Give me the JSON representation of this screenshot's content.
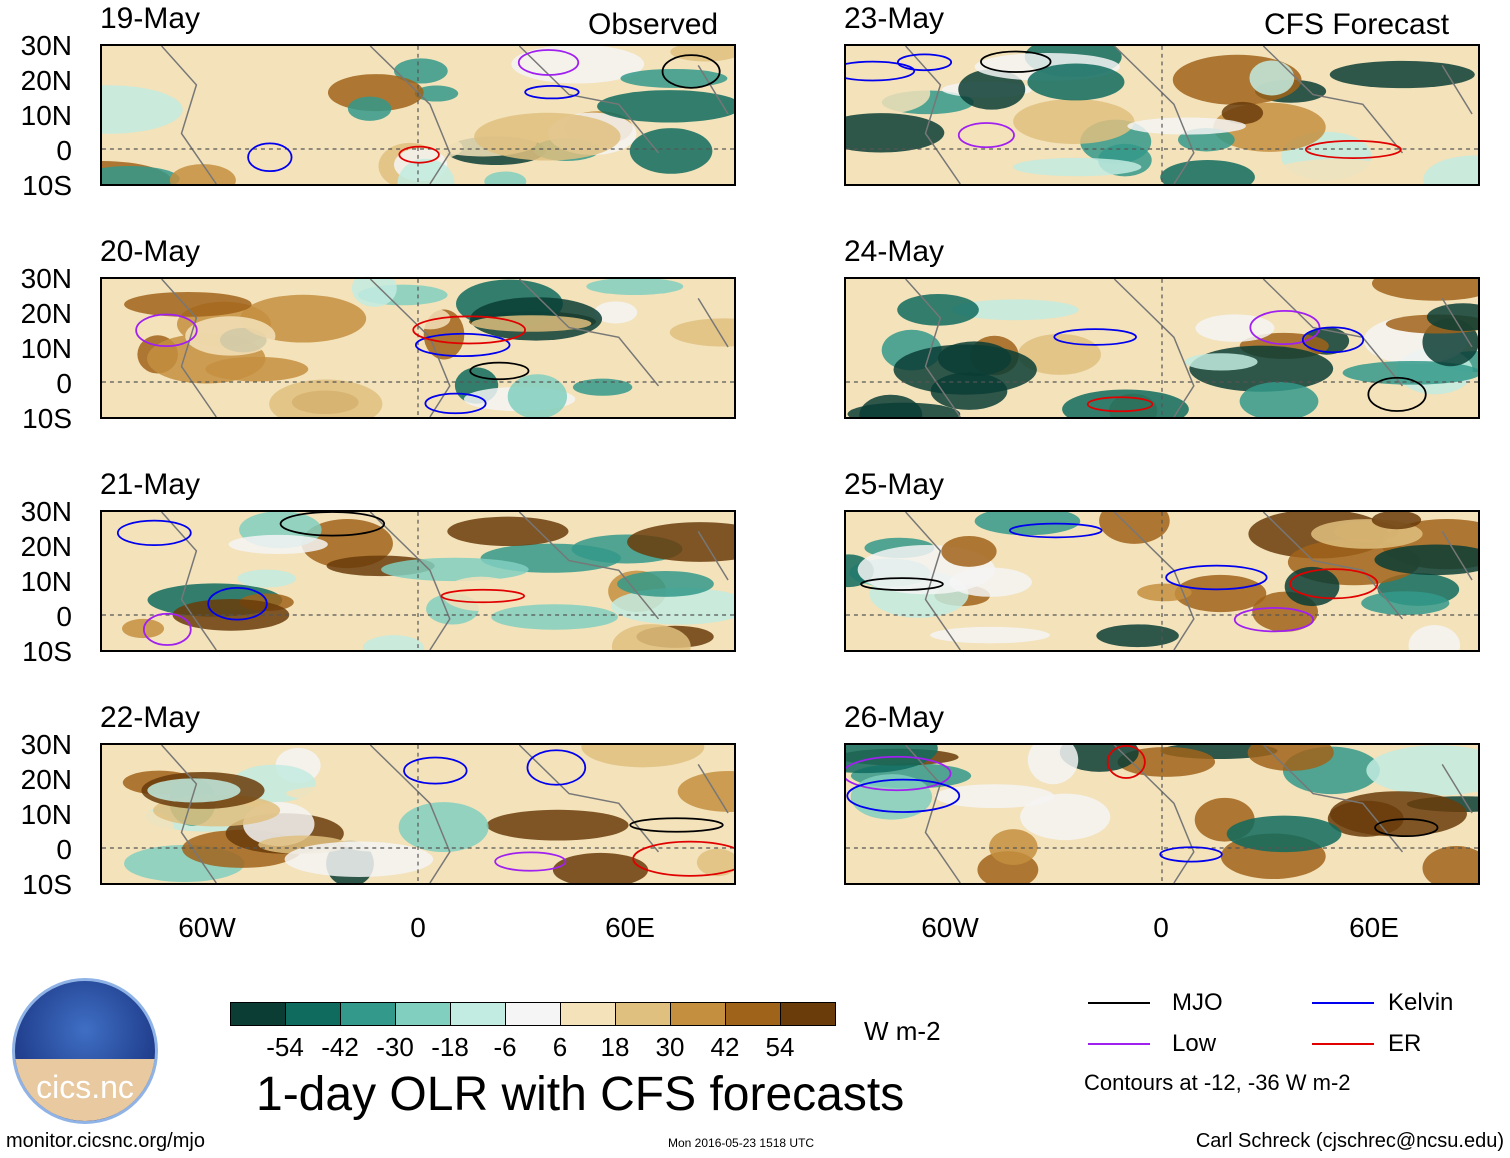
{
  "header": {
    "observed_label": "Observed",
    "forecast_label": "CFS Forecast"
  },
  "observed_panels": [
    {
      "date": "19-May"
    },
    {
      "date": "20-May"
    },
    {
      "date": "21-May"
    },
    {
      "date": "22-May"
    }
  ],
  "forecast_panels": [
    {
      "date": "23-May"
    },
    {
      "date": "24-May"
    },
    {
      "date": "25-May"
    },
    {
      "date": "26-May"
    }
  ],
  "lat_labels": [
    "30N",
    "20N",
    "10N",
    "0",
    "10S"
  ],
  "lon_labels": [
    "60W",
    "0",
    "60E"
  ],
  "colorbar": {
    "unit": "W m-2",
    "colors": [
      "#0b3d35",
      "#0f6b5e",
      "#33998a",
      "#80cfbf",
      "#c2ebe1",
      "#f5f5f5",
      "#f3e2ba",
      "#dfc07f",
      "#c48f3f",
      "#a0631a",
      "#6a3c0a"
    ],
    "ticks": [
      "-54",
      "-42",
      "-30",
      "-18",
      "-6",
      "6",
      "18",
      "30",
      "42",
      "54"
    ]
  },
  "title": "1-day OLR with CFS forecasts",
  "legend": {
    "items": [
      {
        "label": "MJO",
        "color": "#000000"
      },
      {
        "label": "Kelvin",
        "color": "#0000ee"
      },
      {
        "label": "Low",
        "color": "#a020f0"
      },
      {
        "label": "ER",
        "color": "#e00000"
      }
    ],
    "note": "Contours at -12, -36 W m-2"
  },
  "logo_text": "cics.nc",
  "footer": {
    "left": "monitor.cicsnc.org/mjo",
    "center": "Mon 2016-05-23 1518 UTC",
    "right": "Carl Schreck (cjschrec@ncsu.edu)"
  }
}
